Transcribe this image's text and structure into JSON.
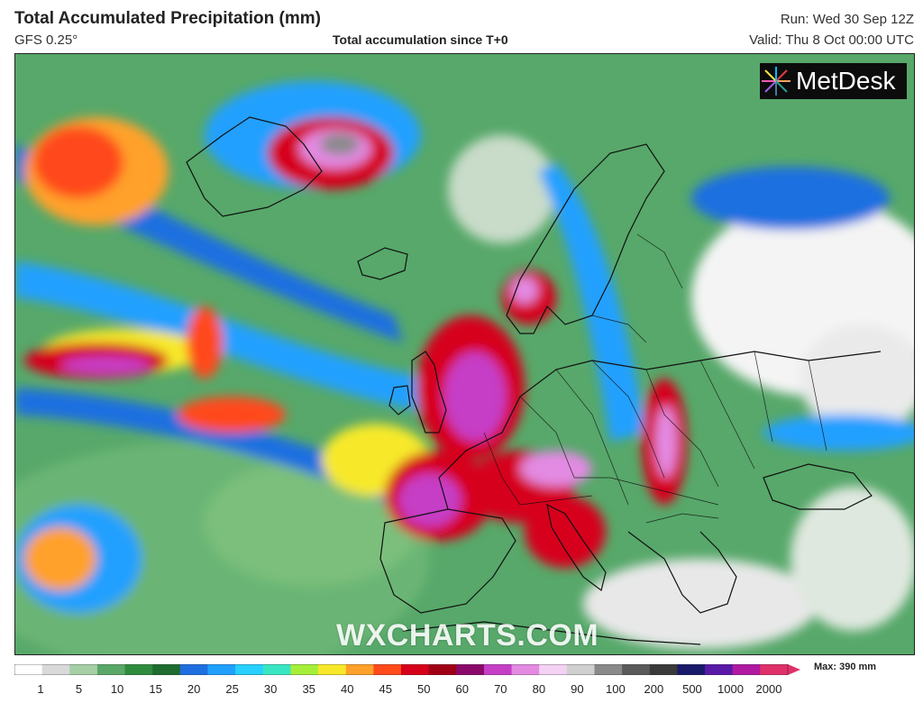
{
  "header": {
    "title": "Total Accumulated Precipitation (mm)",
    "model": "GFS 0.25°",
    "subtitle": "Total accumulation since T+0",
    "run": "Run: Wed 30 Sep 12Z",
    "valid": "Valid: Thu 8 Oct 00:00 UTC"
  },
  "brand": {
    "name": "MetDesk"
  },
  "watermark": {
    "text": "WXCHARTS.COM"
  },
  "legend": {
    "max_label": "Max: 390 mm",
    "ticks": [
      "1",
      "5",
      "10",
      "15",
      "20",
      "25",
      "30",
      "35",
      "40",
      "45",
      "50",
      "60",
      "70",
      "80",
      "90",
      "100",
      "200",
      "500",
      "1000",
      "2000"
    ],
    "colors": [
      "#ffffff",
      "#d9d9d9",
      "#a6cfa6",
      "#5aa868",
      "#2f8b3d",
      "#1e6c30",
      "#1f6fe0",
      "#20a0ff",
      "#27d0ff",
      "#39e6c4",
      "#a6ef39",
      "#f7e92a",
      "#ffa12a",
      "#ff4a1a",
      "#d6001a",
      "#a00016",
      "#8a0a6b",
      "#c63ec6",
      "#e38ae3",
      "#f4d2f4",
      "#d0d0d0",
      "#8a8a8a",
      "#5a5a5a",
      "#3a3a3a",
      "#1a1a6b",
      "#5a1aa8",
      "#b01aa0",
      "#e0306a"
    ],
    "scale_type": "nonlinear"
  }
}
